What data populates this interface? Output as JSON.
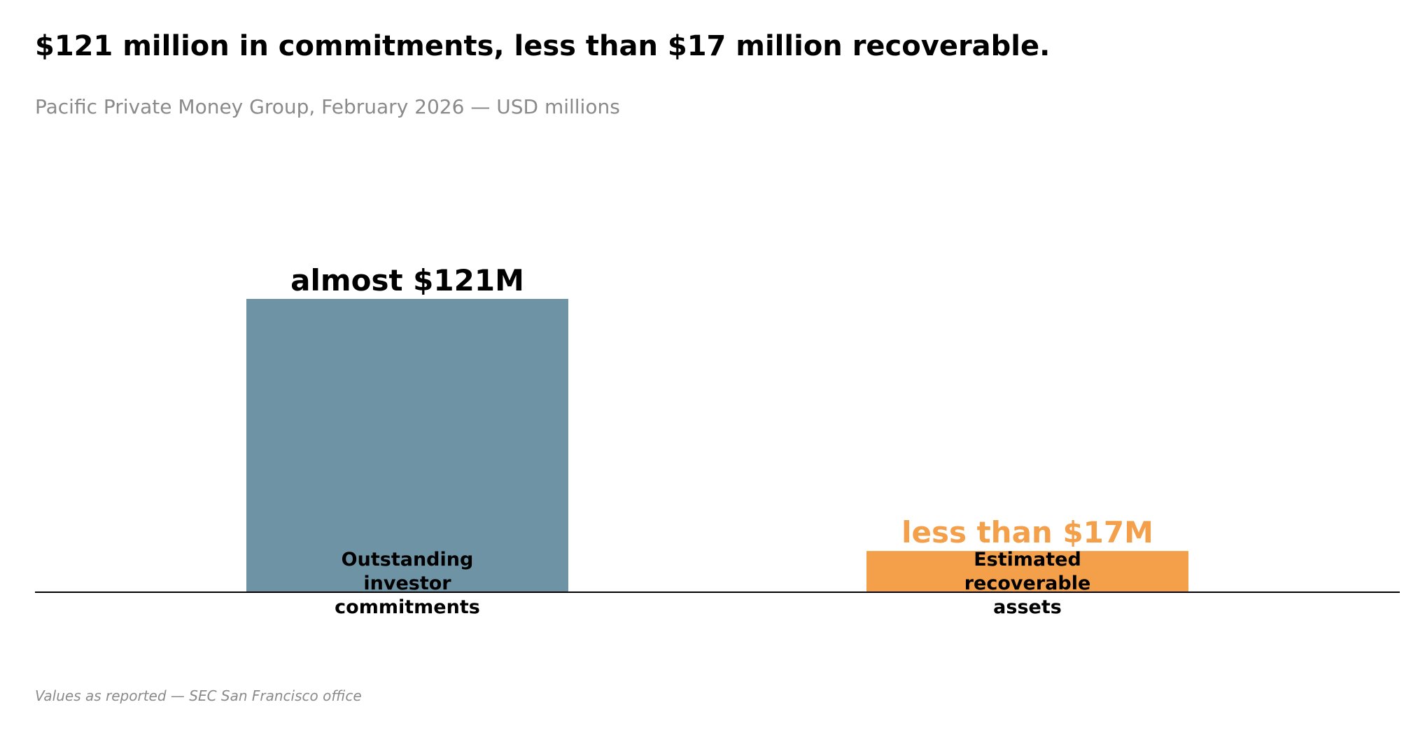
{
  "header": {
    "title": "$121 million in commitments, less than $17 million recoverable.",
    "subtitle": "Pacific Private Money Group, February 2026 — USD millions"
  },
  "footnote": "Values as reported — SEC San Francisco office",
  "colors": {
    "commitments": "#6d93a5",
    "recoverable": "#f49f4a",
    "recoverable_label": "#f49f4a",
    "baseline": "#000000",
    "text": "#000000"
  },
  "chart_data": {
    "type": "bar",
    "categories": [
      "Outstanding investor commitments",
      "Estimated recoverable assets"
    ],
    "category_lines": [
      [
        "Outstanding",
        "investor",
        "commitments"
      ],
      [
        "Estimated",
        "recoverable",
        "assets"
      ]
    ],
    "values": [
      121,
      17
    ],
    "value_labels": [
      "almost $121M",
      "less than $17M"
    ],
    "unit": "USD millions",
    "ylim": [
      0,
      121
    ],
    "grid": false,
    "legend": "none"
  }
}
